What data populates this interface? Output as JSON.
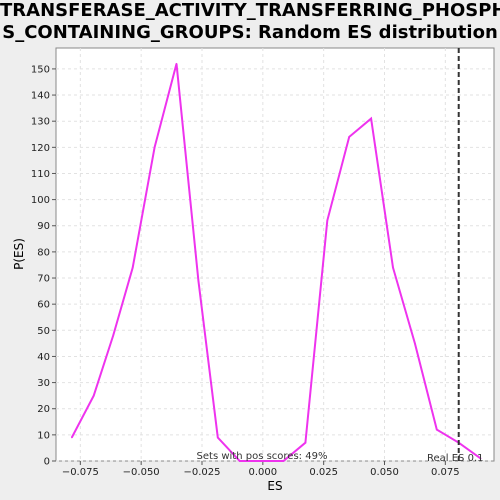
{
  "title_line1": "TRANSFERASE_ACTIVITY_TRANSFERRING_PHOSPHORU",
  "title_line2": "S_CONTAINING_GROUPS: Random ES distribution",
  "chart_data": {
    "type": "line",
    "title": "TRANSFERASE_ACTIVITY_TRANSFERRING_PHOSPHORUS_CONTAINING_GROUPS: Random ES distribution",
    "xlabel": "ES",
    "ylabel": "P(ES)",
    "xlim": [
      -0.085,
      0.095
    ],
    "ylim": [
      0,
      158
    ],
    "x_ticks": [
      -0.075,
      -0.05,
      -0.025,
      0.0,
      0.025,
      0.05,
      0.075
    ],
    "x_tick_labels": [
      "−0.075",
      "−0.050",
      "−0.025",
      "0.000",
      "0.025",
      "0.050",
      "0.075"
    ],
    "y_ticks": [
      0,
      10,
      20,
      30,
      40,
      50,
      60,
      70,
      80,
      90,
      100,
      110,
      120,
      130,
      140,
      150
    ],
    "grid": true,
    "series": [
      {
        "color": "#ee33ee",
        "x": [
          -0.0785,
          -0.0695,
          -0.0615,
          -0.0535,
          -0.0445,
          -0.0355,
          -0.0265,
          -0.0185,
          -0.0095,
          0.0,
          0.0085,
          0.0175,
          0.0265,
          0.0355,
          0.0445,
          0.0535,
          0.0625,
          0.0715,
          0.0805,
          0.0895
        ],
        "y": [
          9,
          25,
          48,
          74,
          120,
          152,
          69,
          9,
          0,
          0,
          0,
          7,
          92,
          124,
          131,
          74,
          45,
          12,
          7,
          1
        ]
      }
    ],
    "real_es": 0.0805,
    "annotations": {
      "pos_scores": "Sets with pos scores: 49%",
      "real_es": "Real ES 0.1"
    }
  }
}
